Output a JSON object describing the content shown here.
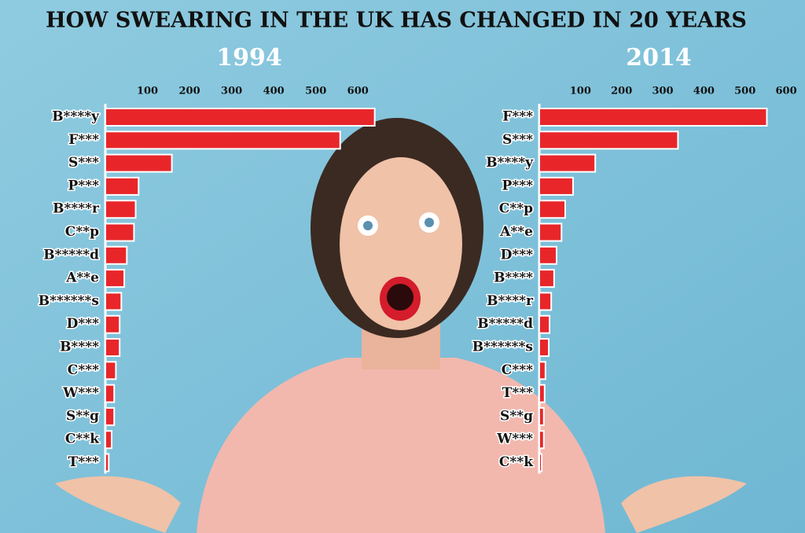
{
  "title": "HOW SWEARING IN THE UK HAS CHANGED IN 20 YEARS",
  "chart_data": [
    {
      "type": "hbar",
      "title": "1994",
      "color": "#e8262a",
      "categories": [
        "B****y",
        "F***",
        "S***",
        "P***",
        "B****r",
        "C**p",
        "B*****d",
        "A**e",
        "B******s",
        "D***",
        "B****",
        "C***",
        "W***",
        "S**g",
        "C**k",
        "T***"
      ],
      "values": [
        640,
        558,
        158,
        79,
        72,
        68,
        51,
        45,
        38,
        34,
        34,
        25,
        21,
        21,
        15,
        8
      ],
      "xlim": [
        0,
        650
      ],
      "xticks": [
        100,
        200,
        300,
        400,
        500,
        600
      ]
    },
    {
      "type": "hbar",
      "title": "2014",
      "color": "#e8262a",
      "categories": [
        "F***",
        "S***",
        "B****y",
        "P***",
        "C**p",
        "A**e",
        "D***",
        "B****",
        "B****r",
        "B*****d",
        "B******s",
        "C***",
        "T***",
        "S**g",
        "W***",
        "C**k"
      ],
      "values": [
        553,
        337,
        136,
        82,
        63,
        54,
        42,
        36,
        29,
        25,
        23,
        15,
        13,
        11,
        11,
        6
      ],
      "xlim": [
        0,
        640
      ],
      "xticks": [
        100,
        200,
        300,
        400,
        500,
        600
      ]
    }
  ]
}
